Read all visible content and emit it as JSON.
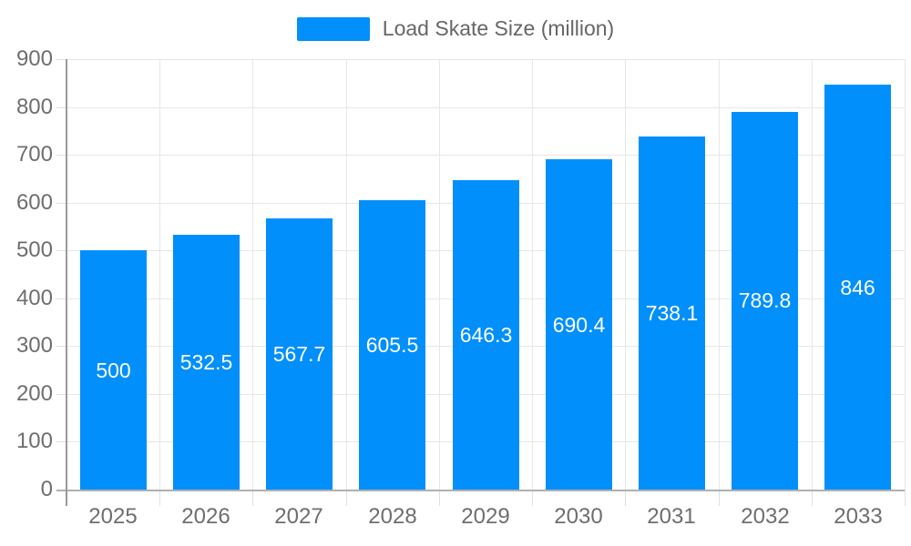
{
  "chart_data": {
    "type": "bar",
    "title": "Load Skate Size (million)",
    "legend": {
      "position": "top",
      "label": "Load Skate Size (million)"
    },
    "categories": [
      "2025",
      "2026",
      "2027",
      "2028",
      "2029",
      "2030",
      "2031",
      "2032",
      "2033"
    ],
    "series": [
      {
        "name": "Load Skate Size (million)",
        "values": [
          500,
          532.5,
          567.7,
          605.5,
          646.3,
          690.4,
          738.1,
          789.8,
          846
        ]
      }
    ],
    "value_labels": [
      "500",
      "532.5",
      "567.7",
      "605.5",
      "646.3",
      "690.4",
      "738.1",
      "789.8",
      "846"
    ],
    "xlabel": "",
    "ylabel": "",
    "ylim": [
      0,
      900
    ],
    "ytick_step": 100,
    "ytick_labels": [
      "0",
      "100",
      "200",
      "300",
      "400",
      "500",
      "600",
      "700",
      "800",
      "900"
    ],
    "grid": true,
    "colors": {
      "bar": "#008FFB",
      "grid": "#e7e7e7",
      "tick": "#e0e0e0",
      "baseline": "#b0b0b0",
      "axis_line": "#9a9a9a",
      "axis_label": "#6e6e6e",
      "value_label": "#ffffff",
      "legend_text": "#666666",
      "background": "#ffffff"
    }
  }
}
